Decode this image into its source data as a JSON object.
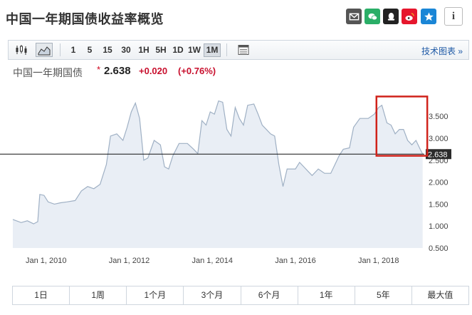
{
  "header": {
    "title": "中国一年期国债收益率概览",
    "share_icons": [
      "mail-icon",
      "wechat-icon",
      "qq-icon",
      "weibo-icon",
      "star-icon",
      "info-icon"
    ],
    "info_glyph": "i"
  },
  "toolbar": {
    "chart_type_icons": [
      "candlestick-icon",
      "area-chart-icon"
    ],
    "intervals": [
      "1",
      "5",
      "15",
      "30",
      "1H",
      "5H",
      "1D",
      "1W",
      "1M"
    ],
    "active_interval": "1M",
    "tech_chart_link": "技术图表 »"
  },
  "quote": {
    "name": "中国一年期国债",
    "star": "*",
    "price": "2.638",
    "change": "+0.020",
    "change_pct": "(+0.76%)",
    "positive_color": "#c8102e"
  },
  "range_buttons": [
    "1日",
    "1周",
    "1个月",
    "3个月",
    "6个月",
    "1年",
    "5年",
    "最大值"
  ],
  "chart_data": {
    "type": "area",
    "title": "",
    "xlabel": "",
    "ylabel": "",
    "x_ticks": [
      "Jan 1, 2010",
      "Jan 1, 2012",
      "Jan 1, 2014",
      "Jan 1, 2016",
      "Jan 1, 2018"
    ],
    "y_ticks": [
      "0.500",
      "1.000",
      "1.500",
      "2.000",
      "2.500",
      "3.000",
      "3.500"
    ],
    "ylim": [
      0.5,
      4.2
    ],
    "xlim": [
      2009.2,
      2019.1
    ],
    "current_value": "2.638",
    "current_line_value": 2.638,
    "area_fill": "#e9eef5",
    "line_color": "#9fb0c4",
    "highlight_box_color": "#d0231b",
    "highlight_range": [
      2018.0,
      2019.0
    ],
    "series": [
      {
        "values": [
          [
            2009.2,
            1.15
          ],
          [
            2009.4,
            1.08
          ],
          [
            2009.55,
            1.12
          ],
          [
            2009.7,
            1.05
          ],
          [
            2009.8,
            1.1
          ],
          [
            2009.85,
            1.72
          ],
          [
            2009.95,
            1.7
          ],
          [
            2010.05,
            1.55
          ],
          [
            2010.2,
            1.5
          ],
          [
            2010.35,
            1.53
          ],
          [
            2010.5,
            1.55
          ],
          [
            2010.7,
            1.58
          ],
          [
            2010.85,
            1.8
          ],
          [
            2011.0,
            1.9
          ],
          [
            2011.15,
            1.85
          ],
          [
            2011.3,
            1.95
          ],
          [
            2011.45,
            2.4
          ],
          [
            2011.55,
            3.05
          ],
          [
            2011.7,
            3.1
          ],
          [
            2011.85,
            2.95
          ],
          [
            2011.95,
            3.25
          ],
          [
            2012.05,
            3.6
          ],
          [
            2012.15,
            3.8
          ],
          [
            2012.25,
            3.45
          ],
          [
            2012.35,
            2.5
          ],
          [
            2012.45,
            2.55
          ],
          [
            2012.6,
            2.95
          ],
          [
            2012.75,
            2.85
          ],
          [
            2012.85,
            2.35
          ],
          [
            2012.95,
            2.3
          ],
          [
            2013.05,
            2.6
          ],
          [
            2013.2,
            2.88
          ],
          [
            2013.4,
            2.88
          ],
          [
            2013.55,
            2.75
          ],
          [
            2013.65,
            2.65
          ],
          [
            2013.75,
            3.4
          ],
          [
            2013.85,
            3.3
          ],
          [
            2013.95,
            3.6
          ],
          [
            2014.05,
            3.55
          ],
          [
            2014.15,
            3.85
          ],
          [
            2014.25,
            3.82
          ],
          [
            2014.35,
            3.2
          ],
          [
            2014.45,
            3.05
          ],
          [
            2014.55,
            3.7
          ],
          [
            2014.65,
            3.45
          ],
          [
            2014.75,
            3.3
          ],
          [
            2014.85,
            3.75
          ],
          [
            2015.0,
            3.78
          ],
          [
            2015.1,
            3.55
          ],
          [
            2015.2,
            3.3
          ],
          [
            2015.3,
            3.2
          ],
          [
            2015.4,
            3.1
          ],
          [
            2015.5,
            3.05
          ],
          [
            2015.6,
            2.4
          ],
          [
            2015.7,
            1.9
          ],
          [
            2015.8,
            2.3
          ],
          [
            2016.0,
            2.3
          ],
          [
            2016.1,
            2.45
          ],
          [
            2016.2,
            2.35
          ],
          [
            2016.3,
            2.25
          ],
          [
            2016.4,
            2.15
          ],
          [
            2016.55,
            2.3
          ],
          [
            2016.7,
            2.2
          ],
          [
            2016.85,
            2.2
          ],
          [
            2016.95,
            2.4
          ],
          [
            2017.05,
            2.6
          ],
          [
            2017.15,
            2.75
          ],
          [
            2017.3,
            2.78
          ],
          [
            2017.4,
            3.25
          ],
          [
            2017.55,
            3.45
          ],
          [
            2017.75,
            3.45
          ],
          [
            2017.9,
            3.55
          ],
          [
            2018.0,
            3.7
          ],
          [
            2018.08,
            3.75
          ],
          [
            2018.2,
            3.35
          ],
          [
            2018.3,
            3.3
          ],
          [
            2018.4,
            3.1
          ],
          [
            2018.5,
            3.2
          ],
          [
            2018.6,
            3.2
          ],
          [
            2018.7,
            2.95
          ],
          [
            2018.8,
            2.85
          ],
          [
            2018.9,
            2.95
          ],
          [
            2019.0,
            2.75
          ],
          [
            2019.06,
            2.64
          ]
        ]
      }
    ]
  }
}
